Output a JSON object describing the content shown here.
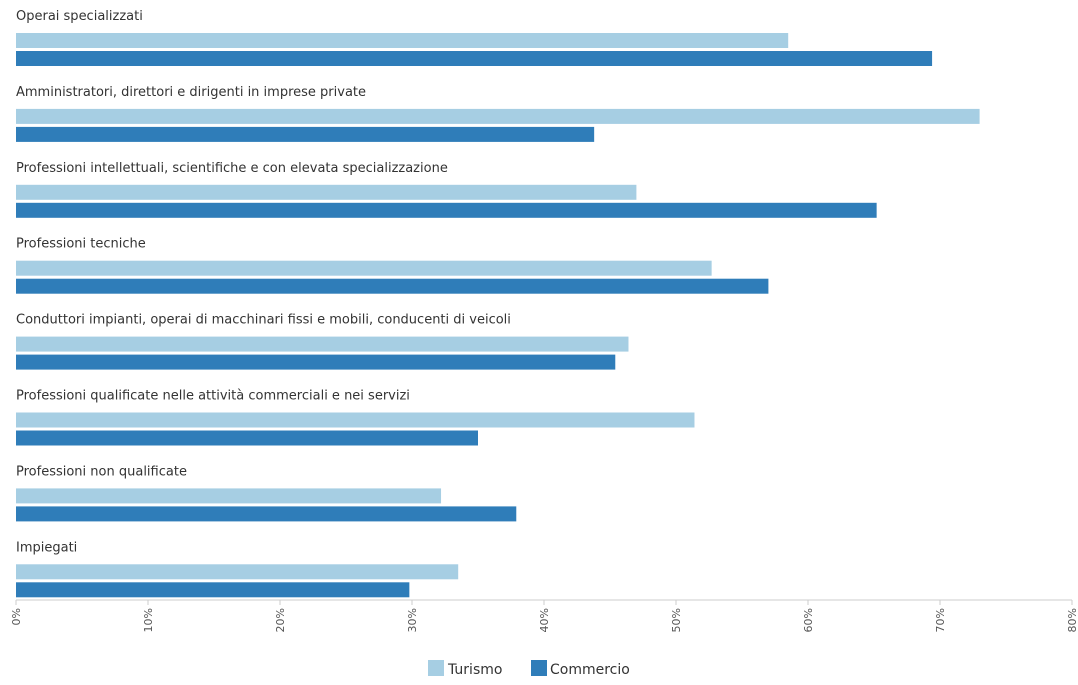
{
  "chart_data": {
    "type": "bar",
    "orientation": "horizontal",
    "categories": [
      "Operai specializzati",
      "Amministratori, direttori e dirigenti in imprese private",
      "Professioni intellettuali, scientifiche e con elevata specializzazione",
      "Professioni tecniche",
      "Conduttori impianti, operai di macchinari fissi e mobili, conducenti di veicoli",
      "Professioni qualificate nelle attività commerciali e nei servizi",
      "Professioni non qualificate",
      "Impiegati"
    ],
    "series": [
      {
        "name": "Turismo",
        "color": "#a6cee3",
        "values": [
          58.5,
          73.0,
          47.0,
          52.7,
          46.4,
          51.4,
          32.2,
          33.5
        ]
      },
      {
        "name": "Commercio",
        "color": "#2f7db9",
        "values": [
          69.4,
          43.8,
          65.2,
          57.0,
          45.4,
          35.0,
          37.9,
          29.8
        ]
      }
    ],
    "xlim": [
      0,
      80
    ],
    "ticks": [
      0,
      10,
      20,
      30,
      40,
      50,
      60,
      70,
      80
    ],
    "tick_labels": [
      "0%",
      "10%",
      "20%",
      "30%",
      "40%",
      "50%",
      "60%",
      "70%",
      "80%"
    ],
    "grid": false,
    "legend_position": "bottom-center",
    "title": "",
    "xlabel": "",
    "ylabel": ""
  }
}
